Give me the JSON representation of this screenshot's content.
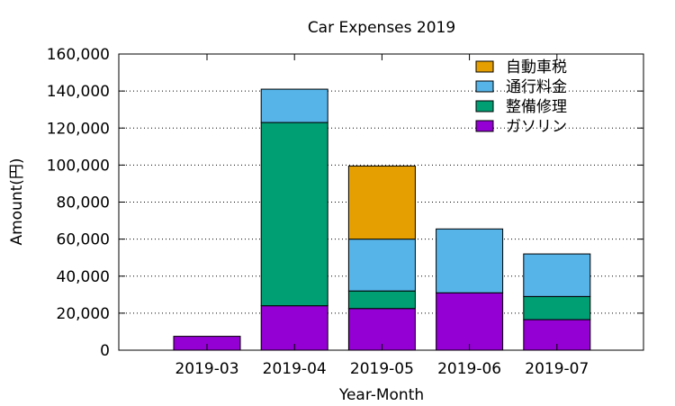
{
  "chart_data": {
    "type": "bar",
    "stacked": true,
    "title": "Car Expenses 2019",
    "xlabel": "Year-Month",
    "ylabel": "Amount(円)",
    "ylim": [
      0,
      160000
    ],
    "yticks": [
      0,
      20000,
      40000,
      60000,
      80000,
      100000,
      120000,
      140000,
      160000
    ],
    "ytick_labels": [
      "0",
      "20,000",
      "40,000",
      "60,000",
      "80,000",
      "100,000",
      "120,000",
      "140,000",
      "160,000"
    ],
    "categories": [
      "2019-03",
      "2019-04",
      "2019-05",
      "2019-06",
      "2019-07"
    ],
    "grid": "horizontal dotted",
    "legend_position": "top-right",
    "series": [
      {
        "name": "ガソリン",
        "color": "#9400d3",
        "values": [
          7500,
          24000,
          22500,
          31000,
          16500
        ]
      },
      {
        "name": "整備修理",
        "color": "#009e73",
        "values": [
          0,
          99000,
          9500,
          0,
          12500
        ]
      },
      {
        "name": "通行料金",
        "color": "#56b4e9",
        "values": [
          0,
          18000,
          28000,
          34500,
          23000
        ]
      },
      {
        "name": "自動車税",
        "color": "#e69f00",
        "values": [
          0,
          0,
          39500,
          0,
          0
        ]
      }
    ]
  }
}
